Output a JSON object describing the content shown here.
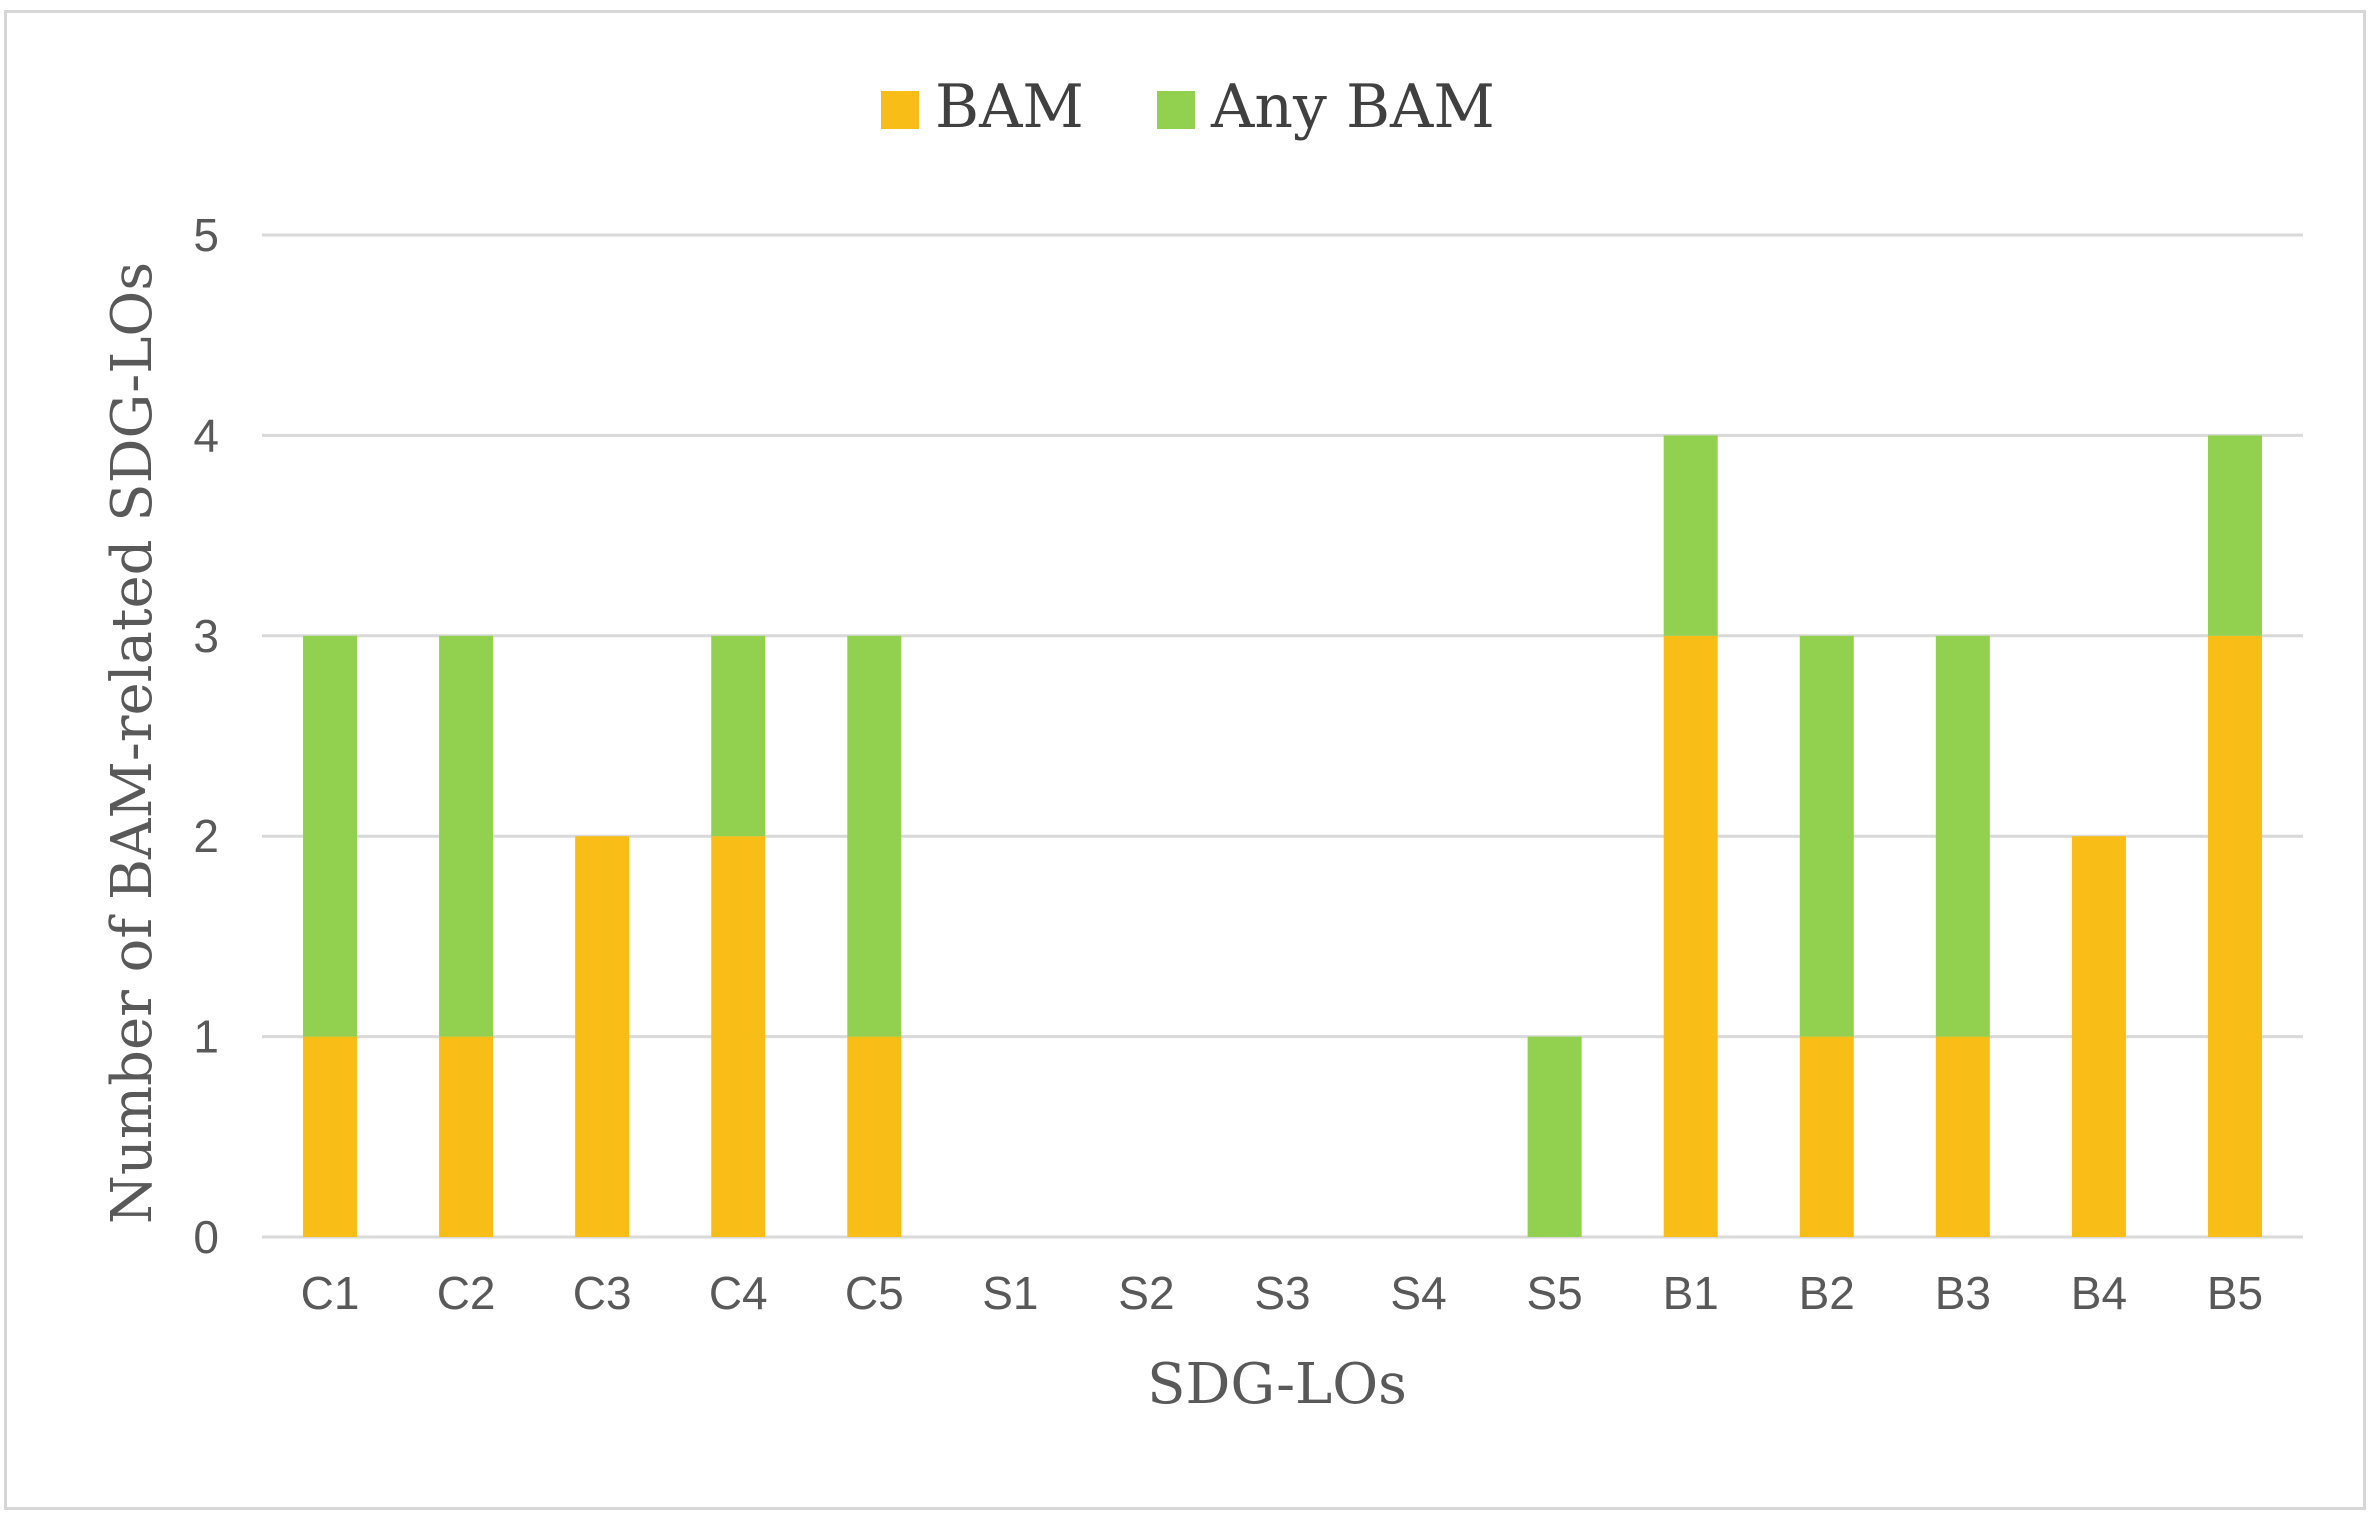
{
  "chart_data": {
    "type": "bar",
    "stacked": true,
    "title": "",
    "xlabel": "SDG-LOs",
    "ylabel": "Number of BAM-related SDG-LOs",
    "categories": [
      "C1",
      "C2",
      "C3",
      "C4",
      "C5",
      "S1",
      "S2",
      "S3",
      "S4",
      "S5",
      "B1",
      "B2",
      "B3",
      "B4",
      "B5"
    ],
    "series": [
      {
        "name": "BAM",
        "color": "#f8bd16",
        "values": [
          1,
          1,
          2,
          2,
          1,
          0,
          0,
          0,
          0,
          0,
          3,
          1,
          1,
          2,
          3
        ]
      },
      {
        "name": "Any BAM",
        "color": "#92d050",
        "values": [
          2,
          2,
          0,
          1,
          2,
          0,
          0,
          0,
          0,
          1,
          1,
          2,
          2,
          0,
          1
        ]
      }
    ],
    "ylim": [
      0,
      5
    ],
    "yticks": [
      0,
      1,
      2,
      3,
      4,
      5
    ],
    "grid": true,
    "legend_position": "top-center"
  },
  "colors": {
    "grid": "#d9d9d9",
    "axis_line": "#d9d9d9",
    "text": "#595959",
    "legend_text": "#404040"
  }
}
